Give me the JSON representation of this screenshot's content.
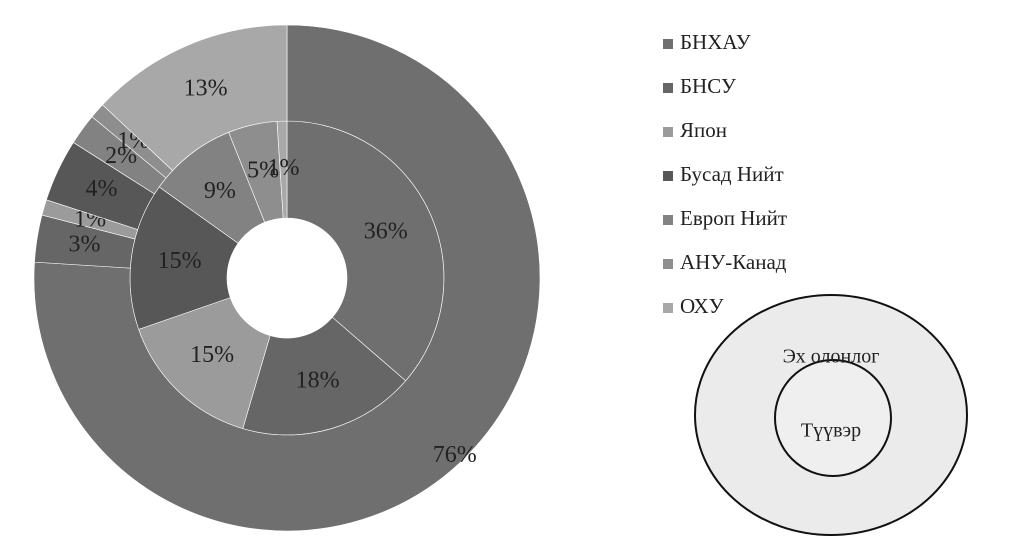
{
  "chart_data": {
    "type": "donut",
    "categories": [
      "БНХАУ",
      "БНСУ",
      "Япон",
      "Бусад Нийт",
      "Европ Нийт",
      "АНУ-Канад",
      "ОХУ"
    ],
    "colors": [
      "#6f6f6f",
      "#666666",
      "#9b9b9b",
      "#575757",
      "#828282",
      "#8e8e8e",
      "#a8a8a8"
    ],
    "series": [
      {
        "values": [
          36,
          18,
          15,
          15,
          9,
          5,
          1
        ],
        "value_labels": [
          "36%",
          "18%",
          "15%",
          "15%",
          "9%",
          "5%",
          "1%"
        ]
      },
      {
        "values": [
          76,
          3,
          1,
          4,
          2,
          1,
          13
        ],
        "value_labels": [
          "76%",
          "3%",
          "1%",
          "4%",
          "2%",
          "1%",
          "13%"
        ]
      }
    ],
    "legend": "right"
  },
  "diagram": {
    "outer_label": "Эх олонлог",
    "inner_label": "Түүвэр"
  }
}
